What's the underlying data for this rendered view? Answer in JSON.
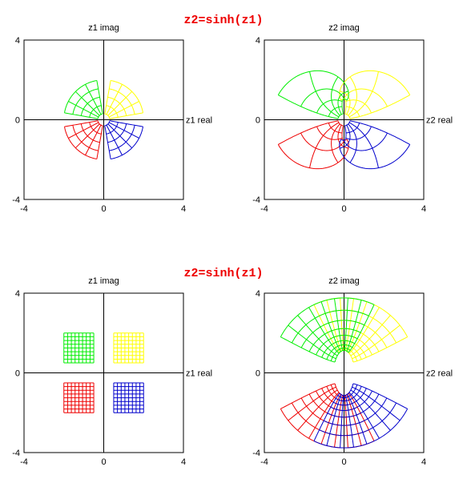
{
  "diagrams": [
    {
      "title": "z2=sinh(z1)",
      "panels": [
        {
          "kind": "z1",
          "grid": "polar",
          "label_imag": "z1 imag",
          "label_real": "z1 real",
          "ticks": {
            "ymax": "4",
            "ymid": "0",
            "ymin": "-4",
            "xmin": "-4",
            "xmid": "0",
            "xmax": "4"
          }
        },
        {
          "kind": "z2",
          "grid": "polar",
          "label_imag": "z2 imag",
          "label_real": "z2 real",
          "ticks": {
            "ymax": "4",
            "ymid": "0",
            "ymin": "-4",
            "xmin": "-4",
            "xmid": "0",
            "xmax": "4"
          }
        }
      ]
    },
    {
      "title": "z2=sinh(z1)",
      "panels": [
        {
          "kind": "z1",
          "grid": "rect",
          "label_imag": "z1 imag",
          "label_real": "z1 real",
          "ticks": {
            "ymax": "4",
            "ymid": "0",
            "ymin": "-4",
            "xmin": "-4",
            "xmid": "0",
            "xmax": "4"
          }
        },
        {
          "kind": "z2",
          "grid": "rect",
          "label_imag": "z2 imag",
          "label_real": "z2 real",
          "ticks": {
            "ymax": "4",
            "ymid": "0",
            "ymin": "-4",
            "xmin": "-4",
            "xmid": "0",
            "xmax": "4"
          }
        }
      ]
    }
  ],
  "axis_range": [
    -4,
    4
  ],
  "mapping": "sinh",
  "quadrant_colors": {
    "q1": "#ffff00",
    "q2": "#00ee00",
    "q3": "#ee0000",
    "q4": "#0000cc"
  },
  "polar_regions": {
    "r": [
      0.3,
      2.0
    ],
    "theta_deg": [
      [
        10,
        80
      ],
      [
        100,
        170
      ],
      [
        190,
        260
      ],
      [
        280,
        350
      ]
    ],
    "r_steps": 4,
    "theta_steps": 4
  },
  "rect_regions": {
    "abs_x": [
      0.5,
      2.0
    ],
    "abs_y": [
      0.5,
      2.0
    ],
    "steps": 8
  }
}
